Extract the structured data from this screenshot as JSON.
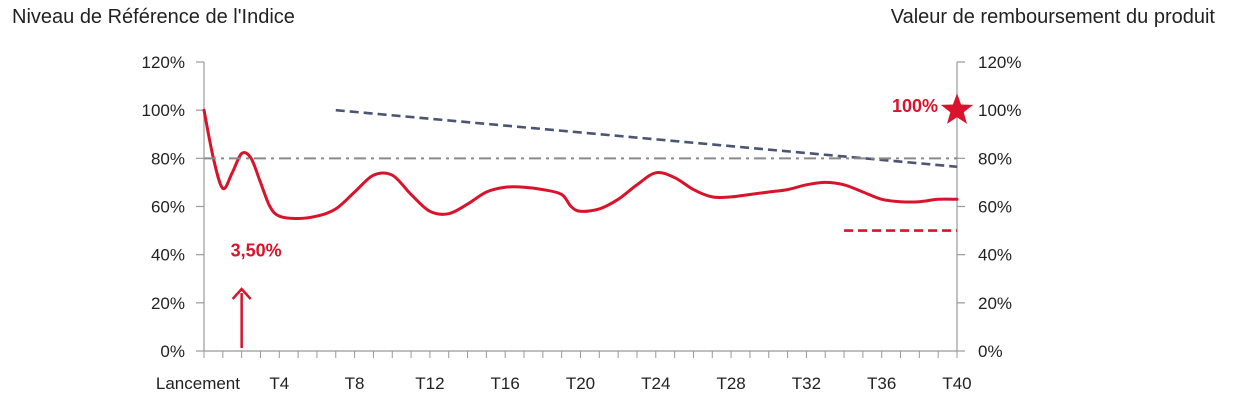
{
  "chart_data": {
    "type": "line",
    "title": "",
    "left_axis_title": "Niveau de Référence de l'Indice",
    "right_axis_title": "Valeur de remboursement du produit",
    "x_tick_labels": [
      "Lancement",
      "T4",
      "T8",
      "T12",
      "T16",
      "T20",
      "T24",
      "T28",
      "T32",
      "T36",
      "T40"
    ],
    "x_tick_values": [
      0,
      4,
      8,
      12,
      16,
      20,
      24,
      28,
      32,
      36,
      40
    ],
    "xlim": [
      0,
      40
    ],
    "ylim": [
      0,
      120
    ],
    "y_ticks": [
      0,
      20,
      40,
      60,
      80,
      100,
      120
    ],
    "y_tick_labels": [
      "0%",
      "20%",
      "40%",
      "60%",
      "80%",
      "100%",
      "120%"
    ],
    "grid": false,
    "series": [
      {
        "style": "solid",
        "color": "#d9132b",
        "x": [
          0,
          0.5,
          1,
          1.5,
          2,
          2.5,
          3,
          3.5,
          4,
          5,
          6,
          7,
          8,
          9,
          10,
          11,
          12,
          13,
          14,
          15,
          16,
          17,
          18,
          19,
          19.5,
          20,
          21,
          22,
          23,
          24,
          25,
          26,
          27,
          28,
          29,
          30,
          31,
          32,
          33,
          34,
          35,
          36,
          37,
          38,
          39,
          40
        ],
        "y": [
          100,
          80,
          67.5,
          74,
          82,
          80,
          70,
          60,
          56,
          55,
          56,
          59,
          66,
          73,
          73,
          65,
          58,
          57,
          61,
          66,
          68,
          68,
          67,
          65,
          60,
          58,
          59,
          63,
          69,
          74,
          72,
          67,
          64,
          64,
          65,
          66,
          67,
          69,
          70,
          69,
          66,
          63,
          62,
          62,
          63,
          63
        ]
      },
      {
        "style": "dash",
        "color": "#4a5572",
        "x": [
          7,
          40
        ],
        "y": [
          100,
          76.5
        ]
      },
      {
        "style": "dash-dot",
        "color": "#8a8a8a",
        "x": [
          0,
          40
        ],
        "y": [
          80,
          80
        ]
      },
      {
        "style": "dash",
        "color": "#d9132b",
        "x": [
          34,
          40
        ],
        "y": [
          50,
          50
        ]
      }
    ],
    "annotations": [
      {
        "text": "3,50%",
        "x": 2,
        "y": 35,
        "color": "#d9132b",
        "arrow": "up"
      },
      {
        "text": "100%",
        "x": 40,
        "y": 100,
        "color": "#d9132b",
        "marker": "star"
      }
    ]
  }
}
